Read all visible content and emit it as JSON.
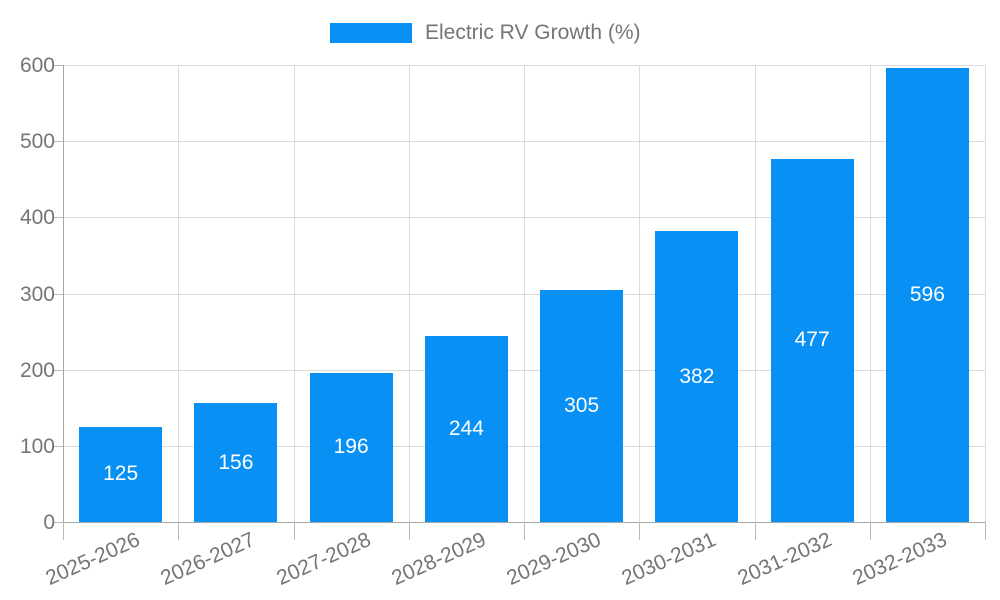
{
  "chart_data": {
    "type": "bar",
    "title": "",
    "legend": {
      "position": "top",
      "entries": [
        "Electric RV Growth (%)"
      ]
    },
    "categories": [
      "2025-2026",
      "2026-2027",
      "2027-2028",
      "2028-2029",
      "2029-2030",
      "2030-2031",
      "2031-2032",
      "2032-2033"
    ],
    "series": [
      {
        "name": "Electric RV Growth (%)",
        "values": [
          125,
          156,
          196,
          244,
          305,
          382,
          477,
          596
        ]
      }
    ],
    "bar_value_labels": [
      "125",
      "156",
      "196",
      "244",
      "305",
      "382",
      "477",
      "596"
    ],
    "ylim": [
      0,
      600
    ],
    "yticks": [
      0,
      100,
      200,
      300,
      400,
      500,
      600
    ],
    "grid": true,
    "bar_labels_shown": true
  },
  "colors": {
    "bar": "#0890F5",
    "bar_label": "#FFFFFF",
    "axis_text": "#757575",
    "gridline": "#DBDBDB",
    "axis_line": "#A6A6A6",
    "tick_mark": "#B8B8B8",
    "background": "#FFFFFF"
  }
}
